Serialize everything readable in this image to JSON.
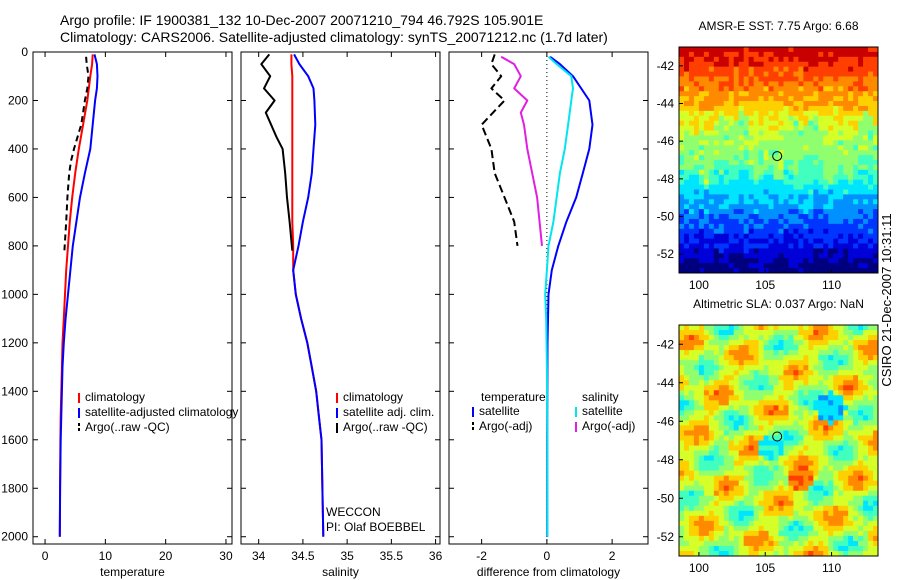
{
  "header": {
    "line1": "Argo profile: IF 1900381_132 10-Dec-2007 20071210_794 46.792S 105.901E",
    "line2": "Climatology: CARS2006. Satellite-adjusted climatology: synTS_20071212.nc (1.7d later)"
  },
  "credit": "CSIRO 21-Dec-2007 10:31:11",
  "colors": {
    "climatology": "#ff0000",
    "satellite": "#0000ff",
    "argo": "#000000",
    "satellite_salinity": "#00e5ee",
    "argo_salinity_adj": "#e020e0"
  },
  "chart_data": [
    {
      "type": "line",
      "id": "temperature",
      "xlabel": "temperature",
      "ylabel": "",
      "xlim": [
        -2,
        31
      ],
      "ylim": [
        2030,
        0
      ],
      "xticks": [
        0,
        10,
        20,
        30
      ],
      "yticks": [
        0,
        200,
        400,
        600,
        800,
        1000,
        1200,
        1400,
        1600,
        1800,
        2000
      ],
      "legend": {
        "position": "lower-right",
        "entries": [
          "climatology",
          "satellite-adjusted climatology",
          "Argo(..raw -QC)"
        ]
      },
      "series": [
        {
          "name": "climatology",
          "color": "#ff0000",
          "dash": "",
          "x": [
            7.9,
            7.8,
            7.5,
            7.0,
            6.3,
            5.6,
            5.0,
            4.5,
            4.1,
            3.8,
            3.5,
            3.3,
            3.1,
            2.9,
            2.8,
            2.7,
            2.6,
            2.55,
            2.5,
            2.45
          ],
          "y": [
            10,
            50,
            100,
            200,
            300,
            400,
            500,
            600,
            700,
            800,
            900,
            1000,
            1100,
            1200,
            1300,
            1400,
            1500,
            1600,
            1800,
            2000
          ]
        },
        {
          "name": "satellite-adjusted climatology",
          "color": "#0000ff",
          "dash": "",
          "x": [
            8.2,
            8.6,
            8.7,
            8.6,
            8.3,
            7.9,
            7.5,
            6.6,
            5.8,
            5.2,
            4.6,
            4.2,
            3.8,
            3.4,
            3.1,
            2.9,
            2.8,
            2.7,
            2.6,
            2.5,
            2.45
          ],
          "y": [
            10,
            50,
            100,
            150,
            200,
            300,
            400,
            500,
            600,
            700,
            800,
            900,
            1000,
            1100,
            1200,
            1300,
            1400,
            1500,
            1600,
            1800,
            2000
          ]
        },
        {
          "name": "Argo(..raw -QC)",
          "color": "#000000",
          "dash": "6,4",
          "x": [
            6.8,
            6.9,
            7.2,
            7.0,
            6.6,
            6.3,
            6.0,
            5.4,
            4.8,
            4.3,
            4.0,
            3.7,
            3.5,
            3.3,
            3.2
          ],
          "y": [
            20,
            50,
            100,
            150,
            200,
            250,
            300,
            350,
            400,
            450,
            500,
            600,
            700,
            780,
            820
          ]
        }
      ]
    },
    {
      "type": "line",
      "id": "salinity",
      "xlabel": "salinity",
      "ylabel": "",
      "xlim": [
        33.8,
        36.05
      ],
      "ylim": [
        2030,
        0
      ],
      "xticks": [
        34,
        34.5,
        35,
        35.5,
        36
      ],
      "xticklabels": [
        "34",
        "34.5",
        "35",
        "35.5",
        "36"
      ],
      "legend": {
        "position": "lower-right",
        "entries": [
          "climatology",
          "satellite adj. clim.",
          "Argo(..raw -QC)"
        ]
      },
      "annotations": [
        "WECCON",
        "PI: Olaf BOEBBEL"
      ],
      "series": [
        {
          "name": "climatology",
          "color": "#ff0000",
          "dash": "",
          "x": [
            34.37,
            34.37,
            34.38,
            34.38,
            34.38,
            34.38,
            34.38,
            34.38,
            34.38,
            34.39,
            34.39,
            34.42,
            34.48,
            34.55,
            34.6,
            34.65,
            34.68,
            34.71,
            34.73
          ],
          "y": [
            10,
            50,
            100,
            200,
            300,
            400,
            500,
            600,
            700,
            800,
            900,
            1000,
            1100,
            1200,
            1300,
            1400,
            1500,
            1600,
            2000
          ]
        },
        {
          "name": "satellite adj. clim.",
          "color": "#0000ff",
          "dash": "",
          "x": [
            34.4,
            34.46,
            34.56,
            34.62,
            34.63,
            34.64,
            34.62,
            34.6,
            34.56,
            34.5,
            34.45,
            34.39,
            34.42,
            34.48,
            34.55,
            34.6,
            34.65,
            34.68,
            34.71,
            34.73
          ],
          "y": [
            10,
            50,
            100,
            150,
            200,
            300,
            400,
            500,
            600,
            700,
            800,
            900,
            1000,
            1100,
            1200,
            1300,
            1400,
            1500,
            1600,
            2000
          ]
        },
        {
          "name": "Argo(..raw -QC)",
          "color": "#000000",
          "dash": "",
          "x": [
            34.12,
            34.03,
            34.13,
            34.06,
            34.18,
            34.08,
            34.14,
            34.2,
            34.27,
            34.3,
            34.32,
            34.35,
            34.38
          ],
          "y": [
            10,
            50,
            100,
            150,
            200,
            250,
            300,
            350,
            400,
            500,
            600,
            700,
            820
          ]
        }
      ]
    },
    {
      "type": "line",
      "id": "difference",
      "xlabel": "difference from climatology",
      "ylabel": "",
      "xlim": [
        -3,
        3.1
      ],
      "ylim": [
        2030,
        0
      ],
      "xticks": [
        -2,
        0,
        2
      ],
      "xticklabels": [
        "-2",
        "0",
        "2"
      ],
      "legend": {
        "position": "lower-right",
        "headers": [
          "temperature",
          "salinity"
        ],
        "entries": [
          "satellite",
          "Argo(-adj)",
          "satellite",
          "Argo(-adj)"
        ]
      },
      "series": [
        {
          "name": "satellite",
          "group": "temperature",
          "color": "#0000ff",
          "dash": "",
          "x": [
            0.1,
            0.4,
            0.8,
            1.3,
            1.4,
            1.3,
            1.1,
            0.9,
            0.6,
            0.35,
            0.15,
            0.05,
            0.02,
            0.01,
            0.01
          ],
          "y": [
            20,
            50,
            100,
            200,
            300,
            400,
            500,
            600,
            700,
            800,
            900,
            1000,
            1200,
            1600,
            2000
          ]
        },
        {
          "name": "Argo(-adj)",
          "group": "temperature",
          "color": "#000000",
          "dash": "8,4",
          "x": [
            -1.6,
            -1.7,
            -1.4,
            -1.7,
            -1.3,
            -2.0,
            -1.7,
            -1.6,
            -1.3,
            -1.0,
            -0.9
          ],
          "y": [
            10,
            50,
            100,
            150,
            200,
            300,
            400,
            500,
            600,
            700,
            800
          ]
        },
        {
          "name": "satellite",
          "group": "salinity",
          "color": "#00e5ee",
          "dash": "",
          "x": [
            0.05,
            0.3,
            0.75,
            0.8,
            0.75,
            0.65,
            0.55,
            0.4,
            0.2,
            0.05,
            0.0,
            -0.05,
            -0.02,
            0.0,
            0.02,
            0.02
          ],
          "y": [
            20,
            50,
            100,
            150,
            200,
            300,
            400,
            500,
            700,
            800,
            900,
            1000,
            1100,
            1300,
            1600,
            2000
          ]
        },
        {
          "name": "Argo(-adj)",
          "group": "salinity",
          "color": "#e020e0",
          "dash": "",
          "x": [
            -1.4,
            -1.0,
            -0.8,
            -1.0,
            -0.6,
            -0.8,
            -0.7,
            -0.6,
            -0.45,
            -0.3,
            -0.15
          ],
          "y": [
            20,
            50,
            100,
            150,
            200,
            250,
            300,
            400,
            500,
            600,
            800
          ]
        }
      ]
    },
    {
      "type": "heatmap",
      "id": "sst-map",
      "title": "AMSR-E SST: 7.75 Argo: 6.68",
      "xlim": [
        98.5,
        113.5
      ],
      "ylim": [
        -53,
        -41
      ],
      "xticks": [
        100,
        105,
        110
      ],
      "yticks": [
        -42,
        -44,
        -46,
        -48,
        -50,
        -52
      ],
      "marker": {
        "lon": 105.901,
        "lat": -46.792
      }
    },
    {
      "type": "heatmap",
      "id": "sla-map",
      "title": "Altimetric SLA: 0.037 Argo: NaN",
      "xlim": [
        98.5,
        113.5
      ],
      "ylim": [
        -53,
        -41
      ],
      "xticks": [
        100,
        105,
        110
      ],
      "yticks": [
        -42,
        -44,
        -46,
        -48,
        -50,
        -52
      ],
      "marker": {
        "lon": 105.901,
        "lat": -46.792
      }
    }
  ]
}
